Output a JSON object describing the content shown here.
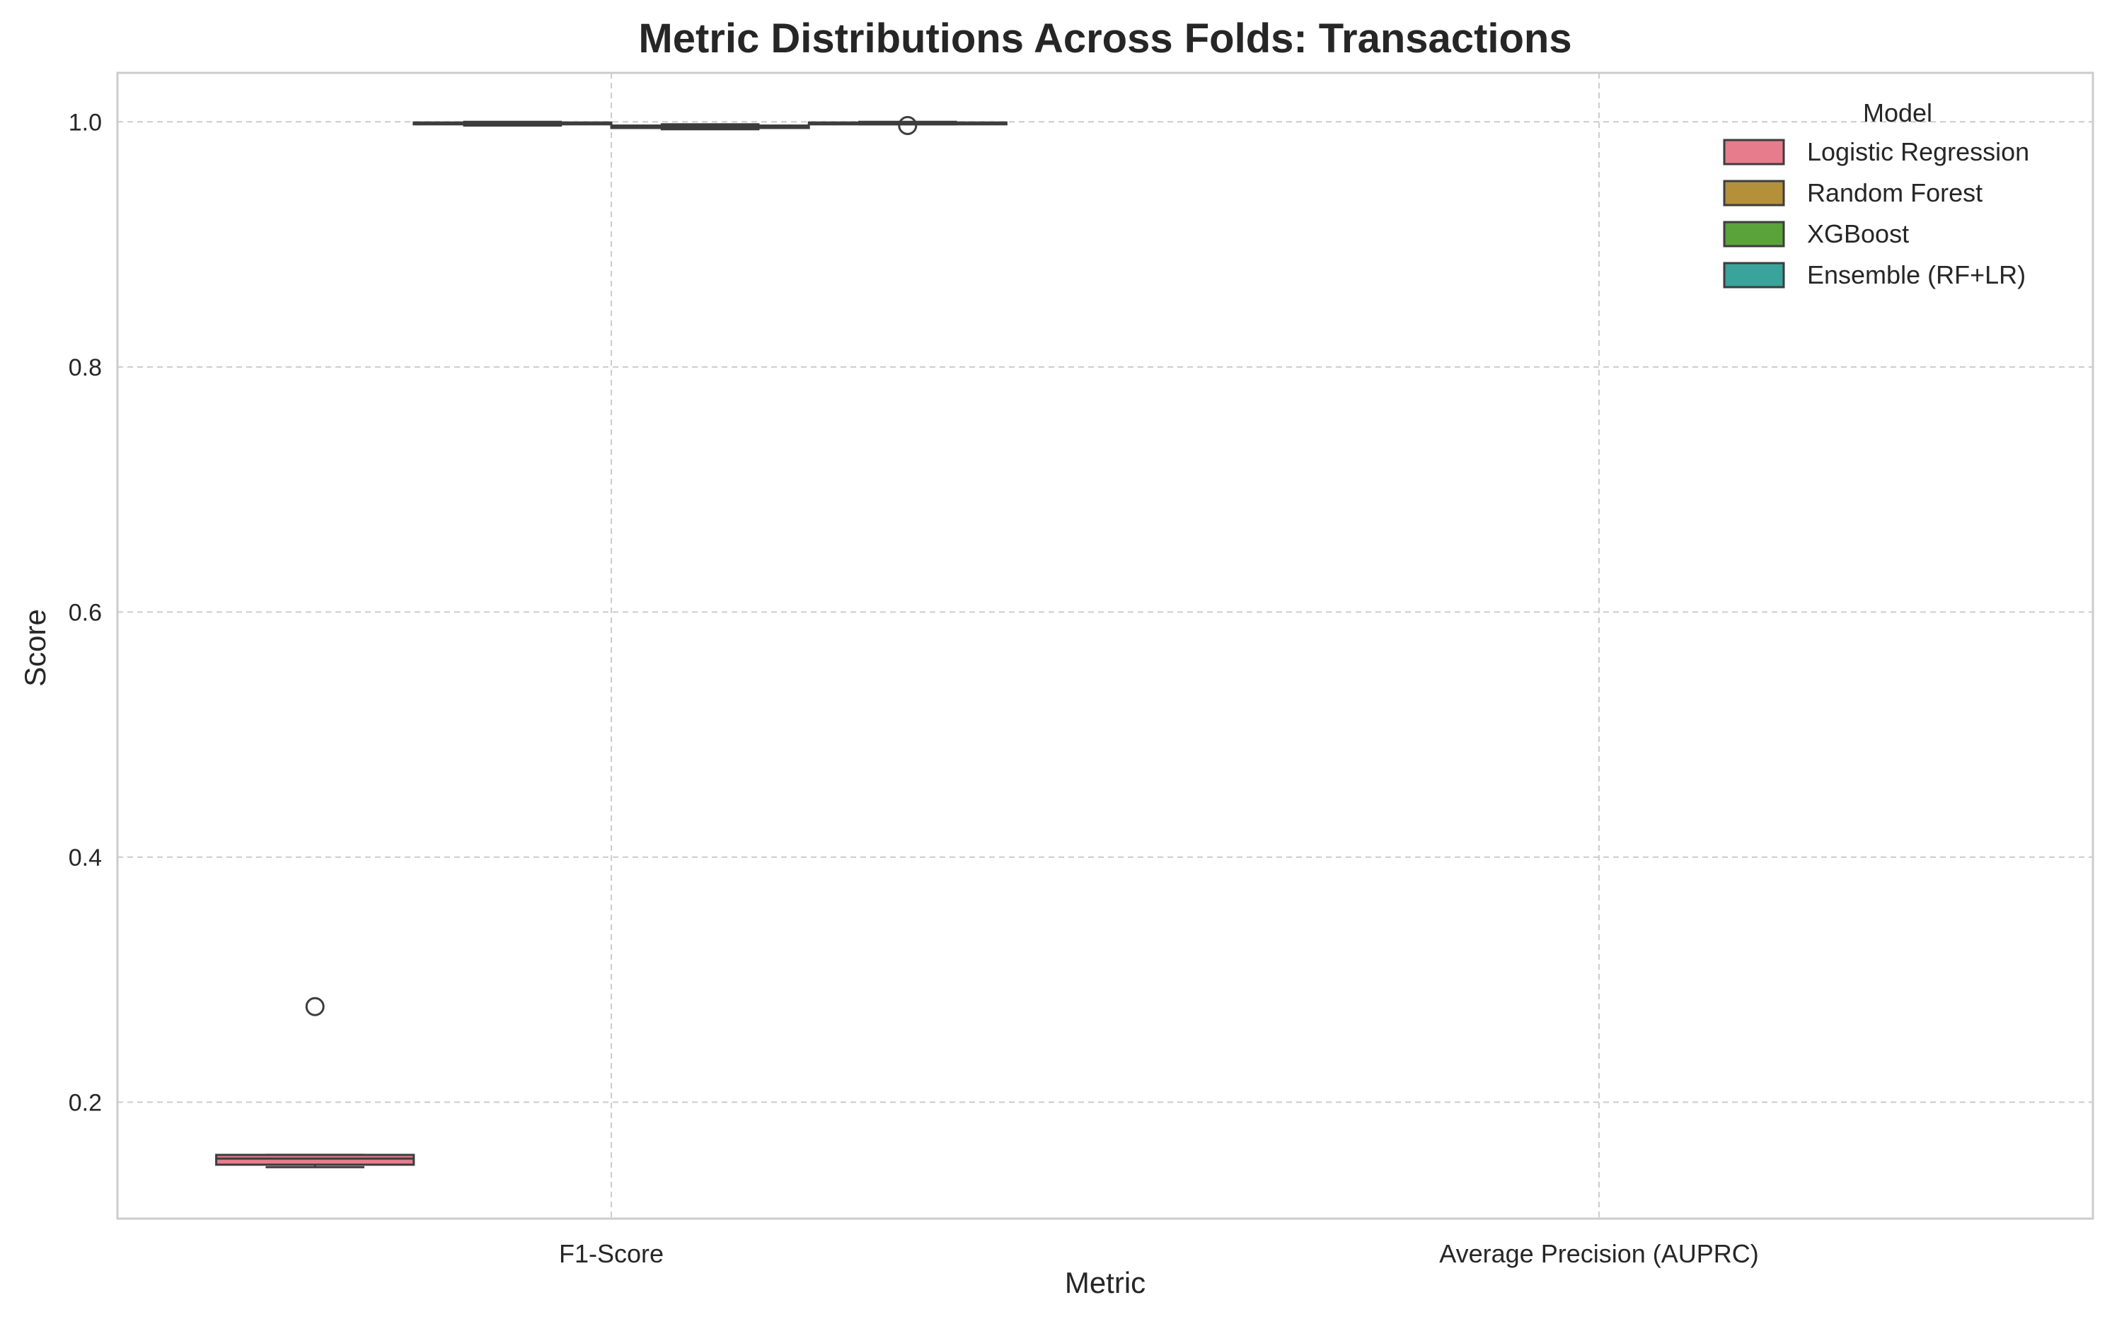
{
  "chart_data": {
    "type": "box",
    "title": "Metric Distributions Across Folds: Transactions",
    "xlabel": "Metric",
    "ylabel": "Score",
    "categories": [
      "F1-Score",
      "Average Precision (AUPRC)"
    ],
    "ylim": [
      0.105,
      1.04
    ],
    "yticks": [
      0.2,
      0.4,
      0.6,
      0.8,
      1.0
    ],
    "ytick_labels": [
      "0.2",
      "0.4",
      "0.6",
      "0.8",
      "1.0"
    ],
    "grid": true,
    "legend": {
      "title": "Model",
      "placement": "top-right"
    },
    "series": [
      {
        "name": "Logistic Regression",
        "color": "#e77c8d",
        "boxes": [
          {
            "category": "F1-Score",
            "whisker_low": 0.147,
            "q1": 0.149,
            "median": 0.154,
            "q3": 0.157,
            "whisker_high": 0.157,
            "outliers": [
              0.278
            ]
          }
        ]
      },
      {
        "name": "Random Forest",
        "color": "#b4903a",
        "boxes": [
          {
            "category": "F1-Score",
            "whisker_low": 0.997,
            "q1": 0.998,
            "median": 0.999,
            "q3": 0.9995,
            "whisker_high": 1.0,
            "outliers": []
          }
        ]
      },
      {
        "name": "XGBoost",
        "color": "#5aa33a",
        "boxes": [
          {
            "category": "F1-Score",
            "whisker_low": 0.994,
            "q1": 0.995,
            "median": 0.996,
            "q3": 0.997,
            "whisker_high": 0.998,
            "outliers": []
          }
        ]
      },
      {
        "name": "Ensemble (RF+LR)",
        "color": "#3aa39b",
        "boxes": [
          {
            "category": "F1-Score",
            "whisker_low": 0.998,
            "q1": 0.998,
            "median": 0.999,
            "q3": 0.9995,
            "whisker_high": 1.0,
            "outliers": [
              0.997
            ]
          }
        ]
      }
    ]
  }
}
